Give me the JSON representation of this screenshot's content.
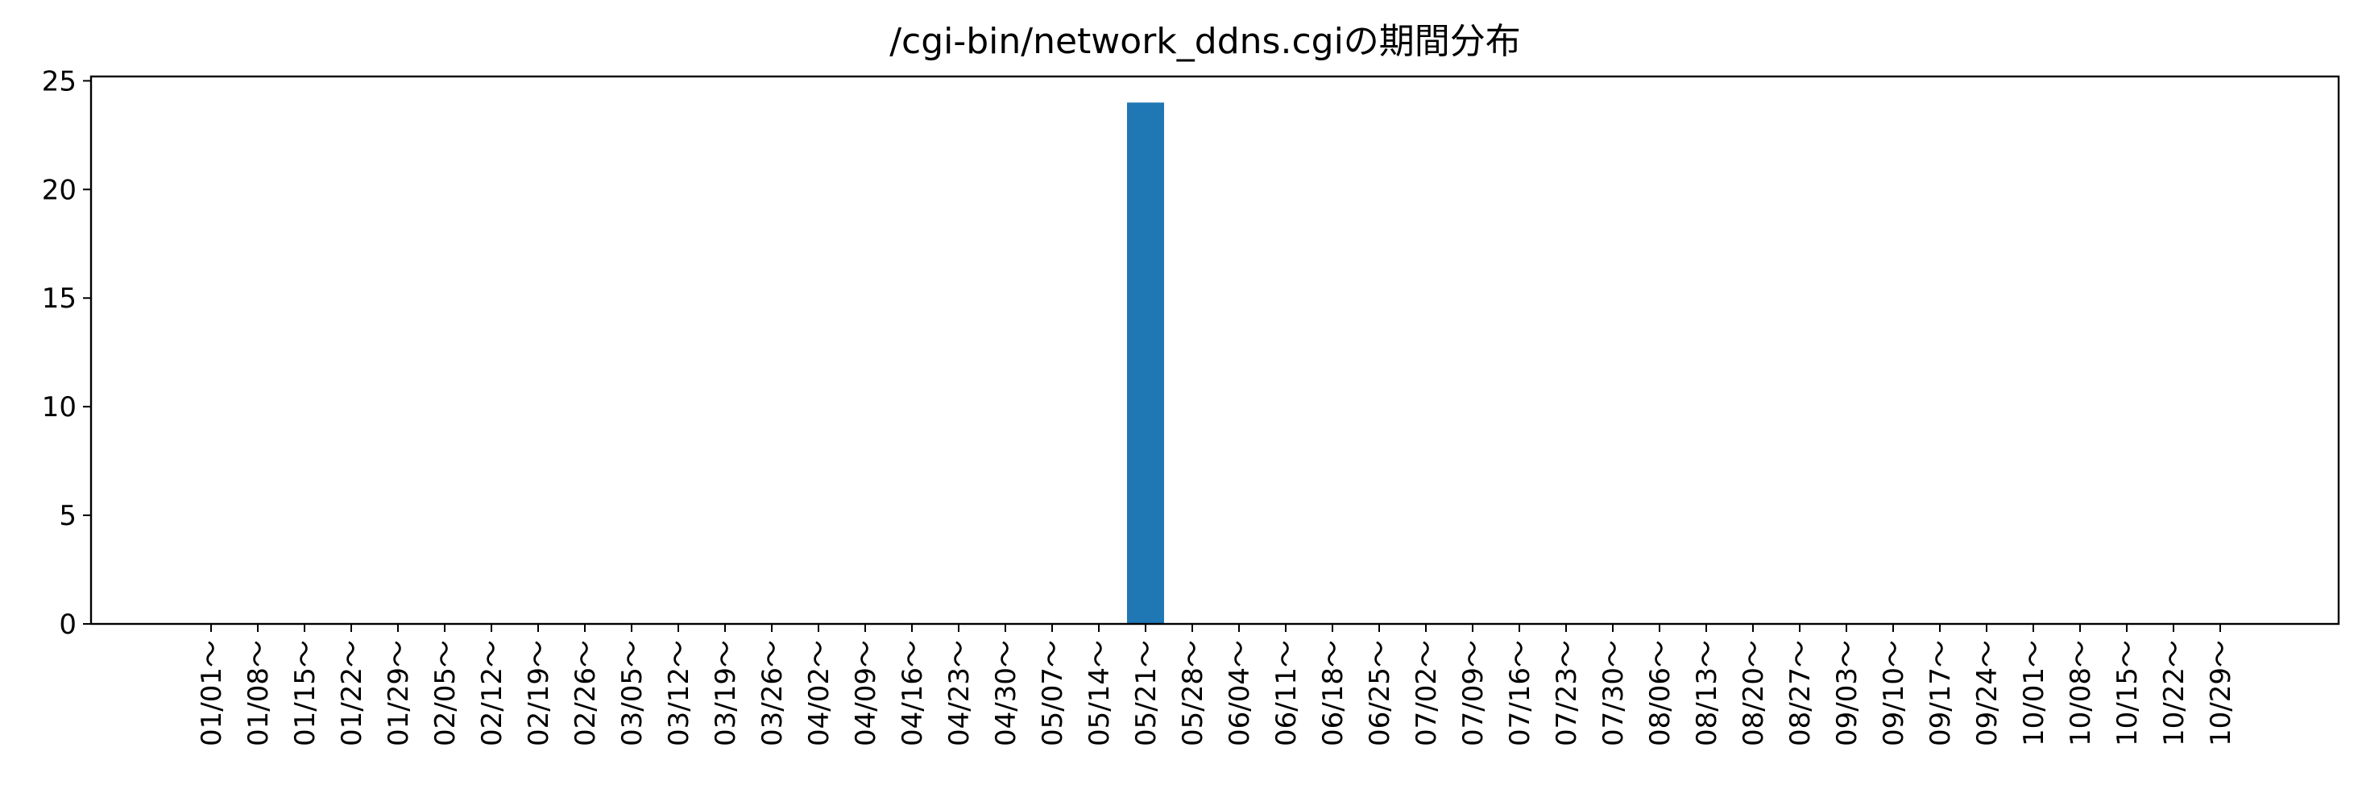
{
  "chart_data": {
    "type": "bar",
    "title": "/cgi-bin/network_ddns.cgiの期間分布",
    "xlabel": "",
    "ylabel": "",
    "ylim": [
      0,
      25.2
    ],
    "yticks": [
      0,
      5,
      10,
      15,
      20,
      25
    ],
    "grid": false,
    "bar_color": "#1f77b4",
    "categories": [
      "01/01～",
      "01/08～",
      "01/15～",
      "01/22～",
      "01/29～",
      "02/05～",
      "02/12～",
      "02/19～",
      "02/26～",
      "03/05～",
      "03/12～",
      "03/19～",
      "03/26～",
      "04/02～",
      "04/09～",
      "04/16～",
      "04/23～",
      "04/30～",
      "05/07～",
      "05/14～",
      "05/21～",
      "05/28～",
      "06/04～",
      "06/11～",
      "06/18～",
      "06/25～",
      "07/02～",
      "07/09～",
      "07/16～",
      "07/23～",
      "07/30～",
      "08/06～",
      "08/13～",
      "08/20～",
      "08/27～",
      "09/03～",
      "09/10～",
      "09/17～",
      "09/24～",
      "10/01～",
      "10/08～",
      "10/15～",
      "10/22～",
      "10/29～"
    ],
    "values": [
      0,
      0,
      0,
      0,
      0,
      0,
      0,
      0,
      0,
      0,
      0,
      0,
      0,
      0,
      0,
      0,
      0,
      0,
      0,
      0,
      24,
      0,
      0,
      0,
      0,
      0,
      0,
      0,
      0,
      0,
      0,
      0,
      0,
      0,
      0,
      0,
      0,
      0,
      0,
      0,
      0,
      0,
      0,
      0
    ]
  }
}
